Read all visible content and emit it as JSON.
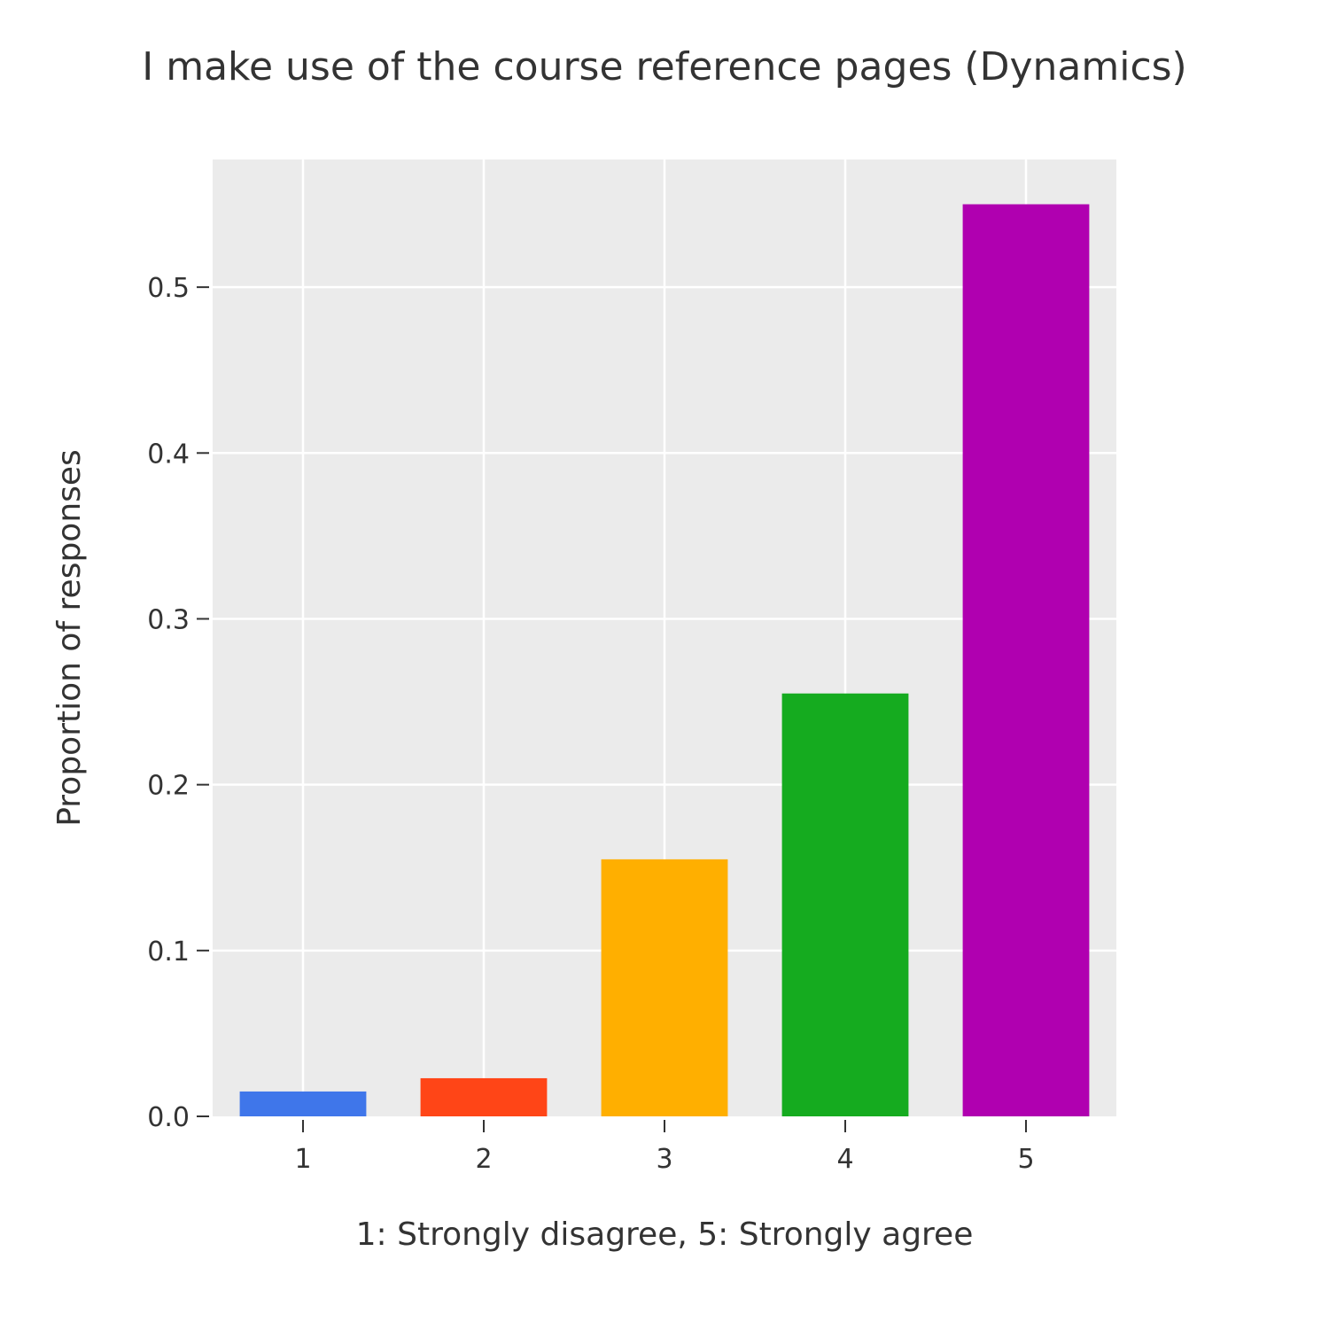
{
  "chart_data": {
    "type": "bar",
    "title": "I make use of the course reference pages (Dynamics)",
    "xlabel": "1: Strongly disagree, 5: Strongly agree",
    "ylabel": "Proportion of responses",
    "categories": [
      "1",
      "2",
      "3",
      "4",
      "5"
    ],
    "values": [
      0.015,
      0.023,
      0.155,
      0.255,
      0.55
    ],
    "bar_colors": [
      "#3f76ea",
      "#ff4517",
      "#ffaf00",
      "#15ab1f",
      "#b000b0"
    ],
    "ylim": [
      0,
      0.577
    ],
    "yticks": [
      0,
      0.1,
      0.2,
      0.3,
      0.4,
      0.5
    ],
    "ytick_labels": [
      "0.0",
      "0.1",
      "0.2",
      "0.3",
      "0.4",
      "0.5"
    ],
    "grid": true,
    "legend": "none",
    "plot_background": "#ebebeb",
    "grid_color": "#ffffff"
  }
}
